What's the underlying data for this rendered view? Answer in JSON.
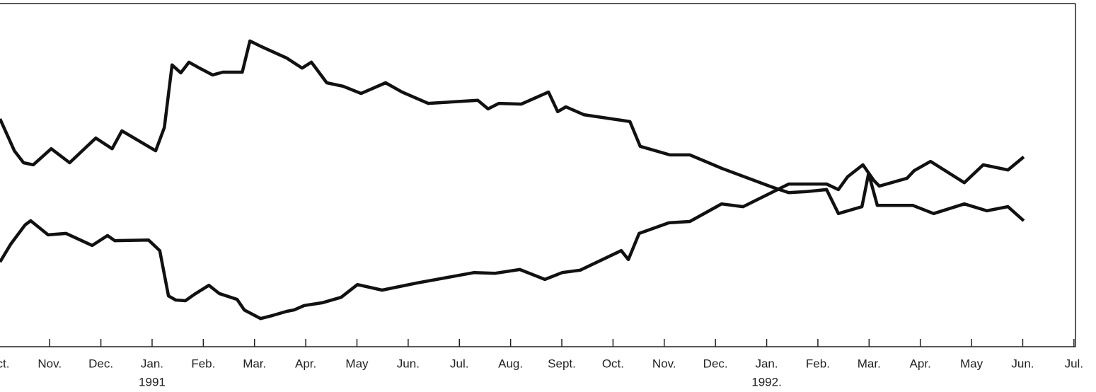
{
  "chart_data": {
    "type": "line",
    "xlim": [
      0.03,
      21.03
    ],
    "ylim": [
      0,
      100
    ],
    "xticks": [
      {
        "value": 0,
        "label": "Oct."
      },
      {
        "value": 1,
        "label": "Nov."
      },
      {
        "value": 2,
        "label": "Dec."
      },
      {
        "value": 3,
        "label": "Jan."
      },
      {
        "value": 4,
        "label": "Feb."
      },
      {
        "value": 5,
        "label": "Mar."
      },
      {
        "value": 6,
        "label": "Apr."
      },
      {
        "value": 7,
        "label": "May"
      },
      {
        "value": 8,
        "label": "Jun."
      },
      {
        "value": 9,
        "label": "Jul."
      },
      {
        "value": 10,
        "label": "Aug."
      },
      {
        "value": 11,
        "label": "Sept."
      },
      {
        "value": 12,
        "label": "Oct."
      },
      {
        "value": 13,
        "label": "Nov."
      },
      {
        "value": 14,
        "label": "Dec."
      },
      {
        "value": 15,
        "label": "Jan."
      },
      {
        "value": 16,
        "label": "Feb."
      },
      {
        "value": 17,
        "label": "Mar."
      },
      {
        "value": 18,
        "label": "Apr."
      },
      {
        "value": 19,
        "label": "May"
      },
      {
        "value": 20,
        "label": "Jun."
      },
      {
        "value": 21,
        "label": "Jul."
      }
    ],
    "year_labels": [
      {
        "value": 3,
        "label": "1991"
      },
      {
        "value": 15,
        "label": "1992."
      }
    ],
    "series": [
      {
        "color": "#111111",
        "x": [
          0.03,
          0.31,
          0.49,
          0.68,
          1.03,
          1.39,
          1.9,
          2.22,
          2.41,
          3.07,
          3.24,
          3.39,
          3.56,
          3.72,
          3.9,
          4.18,
          4.38,
          4.76,
          4.91,
          5.14,
          5.63,
          5.93,
          6.11,
          6.41,
          6.73,
          7.08,
          7.56,
          7.88,
          8.39,
          9.36,
          9.56,
          9.77,
          10.21,
          10.74,
          10.92,
          11.08,
          11.43,
          12.33,
          12.53,
          13.11,
          13.5,
          14.12,
          15.09,
          15.43,
          15.78,
          16.17,
          16.4,
          16.86,
          16.99,
          17.16,
          17.85,
          18.26,
          18.86,
          19.3,
          19.71,
          20.02
        ],
        "values": [
          66.4,
          57.1,
          53.6,
          53.0,
          57.7,
          53.6,
          60.8,
          57.7,
          62.9,
          57.1,
          63.9,
          82.1,
          79.8,
          82.9,
          81.4,
          79.2,
          80.0,
          80.0,
          89.1,
          87.4,
          84.1,
          81.2,
          82.9,
          76.9,
          75.9,
          73.8,
          76.9,
          74.2,
          70.9,
          71.8,
          69.3,
          70.9,
          70.7,
          74.2,
          68.5,
          69.9,
          67.6,
          65.6,
          58.4,
          55.9,
          55.9,
          52.0,
          46.6,
          44.9,
          45.2,
          45.8,
          38.8,
          40.8,
          50.5,
          41.2,
          41.2,
          38.8,
          41.6,
          39.6,
          40.8,
          36.7
        ]
      },
      {
        "color": "#111111",
        "x": [
          0.03,
          0.24,
          0.52,
          0.63,
          0.97,
          1.32,
          1.83,
          2.13,
          2.27,
          2.93,
          3.15,
          3.32,
          3.46,
          3.65,
          3.83,
          4.11,
          4.31,
          4.66,
          4.8,
          5.12,
          5.35,
          5.63,
          5.77,
          5.97,
          6.32,
          6.69,
          7.01,
          7.49,
          8.18,
          9.29,
          9.7,
          10.18,
          10.67,
          11.01,
          11.36,
          12.16,
          12.3,
          12.51,
          13.09,
          13.5,
          14.12,
          14.54,
          15.43,
          16.17,
          16.4,
          16.58,
          16.88,
          17.09,
          17.2,
          17.74,
          17.88,
          18.2,
          18.86,
          19.23,
          19.71,
          20.02
        ],
        "values": [
          24.7,
          29.9,
          35.5,
          36.7,
          32.6,
          33.0,
          29.5,
          32.4,
          30.9,
          31.1,
          28.0,
          14.8,
          13.6,
          13.4,
          15.3,
          17.9,
          15.5,
          13.8,
          10.7,
          8.2,
          9.1,
          10.3,
          10.7,
          12.0,
          12.8,
          14.4,
          18.1,
          16.5,
          18.6,
          21.6,
          21.4,
          22.5,
          19.6,
          21.6,
          22.3,
          28.0,
          25.4,
          33.0,
          36.1,
          36.5,
          41.6,
          40.8,
          47.4,
          47.4,
          45.8,
          49.5,
          53.0,
          48.5,
          46.8,
          49.1,
          51.3,
          54.0,
          47.8,
          53.0,
          51.5,
          55.3
        ]
      }
    ]
  }
}
